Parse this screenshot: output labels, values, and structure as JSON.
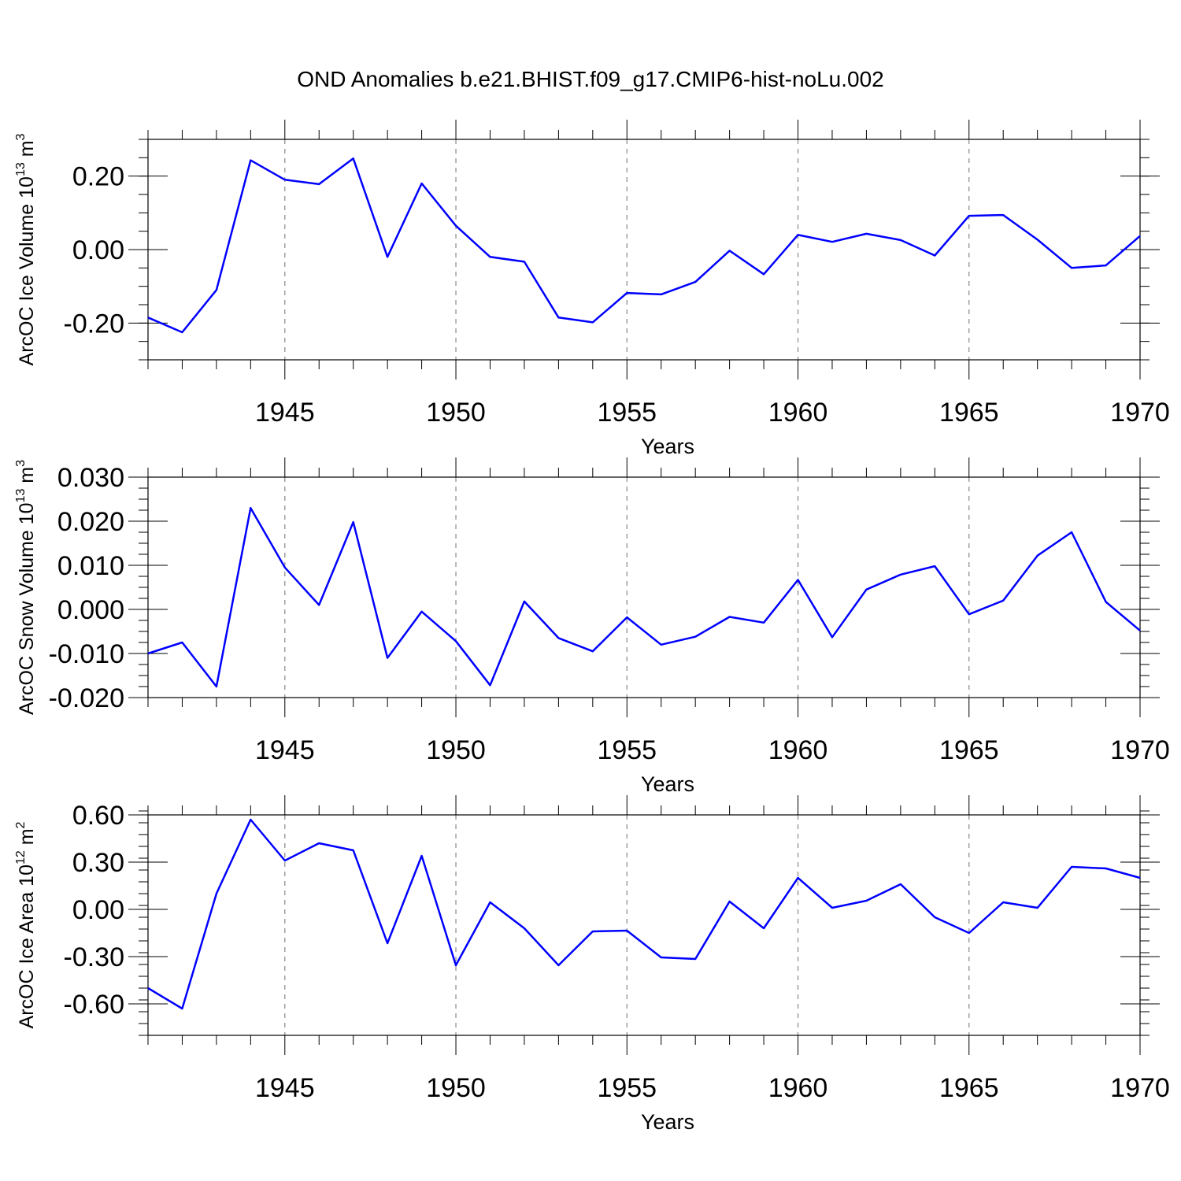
{
  "title": "OND Anomalies b.e21.BHIST.f09_g17.CMIP6-hist-noLu.002",
  "colors": {
    "line": "#0000ff",
    "axis": "#000000",
    "grid": "#888888"
  },
  "chart_data": [
    {
      "type": "line",
      "ylabel": {
        "text": "ArcOC Ice Volume 10",
        "exponent": "13",
        "unit": " m",
        "unit_exponent": "3"
      },
      "xlabel": "Years",
      "xlim": [
        1941,
        1970
      ],
      "ylim": [
        -0.3,
        0.3
      ],
      "xticks": [
        1945,
        1950,
        1955,
        1960,
        1965,
        1970
      ],
      "yticks": [
        -0.2,
        0.0,
        0.2
      ],
      "ytick_labels": [
        "-0.20",
        "0.00",
        "0.20"
      ],
      "grid": "dashed vertical at 5-year marks",
      "x": [
        1941,
        1942,
        1943,
        1944,
        1945,
        1946,
        1947,
        1948,
        1949,
        1950,
        1951,
        1952,
        1953,
        1954,
        1955,
        1956,
        1957,
        1958,
        1959,
        1960,
        1961,
        1962,
        1963,
        1964,
        1965,
        1966,
        1967,
        1968,
        1969,
        1970
      ],
      "values": [
        -0.185,
        -0.225,
        -0.11,
        0.243,
        0.19,
        0.178,
        0.248,
        -0.02,
        0.18,
        0.065,
        -0.02,
        -0.033,
        -0.185,
        -0.198,
        -0.118,
        -0.122,
        -0.088,
        -0.003,
        -0.067,
        0.04,
        0.021,
        0.043,
        0.026,
        -0.016,
        0.092,
        0.094,
        0.027,
        -0.05,
        -0.043,
        0.037
      ]
    },
    {
      "type": "line",
      "ylabel": {
        "text": "ArcOC Snow Volume 10",
        "exponent": "13",
        "unit": " m",
        "unit_exponent": "3"
      },
      "xlabel": "Years",
      "xlim": [
        1941,
        1970
      ],
      "ylim": [
        -0.02,
        0.03
      ],
      "xticks": [
        1945,
        1950,
        1955,
        1960,
        1965,
        1970
      ],
      "yticks": [
        -0.02,
        -0.01,
        0.0,
        0.01,
        0.02,
        0.03
      ],
      "ytick_labels": [
        "-0.020",
        "-0.010",
        "0.000",
        "0.010",
        "0.020",
        "0.030"
      ],
      "grid": "dashed vertical at 5-year marks",
      "x": [
        1941,
        1942,
        1943,
        1944,
        1945,
        1946,
        1947,
        1948,
        1949,
        1950,
        1951,
        1952,
        1953,
        1954,
        1955,
        1956,
        1957,
        1958,
        1959,
        1960,
        1961,
        1962,
        1963,
        1964,
        1965,
        1966,
        1967,
        1968,
        1969,
        1970
      ],
      "values": [
        -0.01,
        -0.0075,
        -0.0175,
        0.023,
        0.0095,
        0.001,
        0.0198,
        -0.011,
        -0.0005,
        -0.0072,
        -0.0172,
        0.0018,
        -0.0065,
        -0.0095,
        -0.0018,
        -0.008,
        -0.0062,
        -0.0017,
        -0.003,
        0.0067,
        -0.0063,
        0.0045,
        0.0079,
        0.0098,
        -0.0011,
        0.002,
        0.0122,
        0.0175,
        0.0017,
        -0.0048
      ]
    },
    {
      "type": "line",
      "ylabel": {
        "text": "ArcOC Ice Area 10",
        "exponent": "12",
        "unit": " m",
        "unit_exponent": "2"
      },
      "xlabel": "Years",
      "xlim": [
        1941,
        1970
      ],
      "ylim": [
        -0.8,
        0.6
      ],
      "xticks": [
        1945,
        1950,
        1955,
        1960,
        1965,
        1970
      ],
      "yticks": [
        -0.6,
        -0.3,
        0.0,
        0.3,
        0.6
      ],
      "ytick_labels": [
        "-0.60",
        "-0.30",
        "0.00",
        "0.30",
        "0.60"
      ],
      "grid": "dashed vertical at 5-year marks",
      "x": [
        1941,
        1942,
        1943,
        1944,
        1945,
        1946,
        1947,
        1948,
        1949,
        1950,
        1951,
        1952,
        1953,
        1954,
        1955,
        1956,
        1957,
        1958,
        1959,
        1960,
        1961,
        1962,
        1963,
        1964,
        1965,
        1966,
        1967,
        1968,
        1969,
        1970
      ],
      "values": [
        -0.5,
        -0.63,
        0.1,
        0.57,
        0.31,
        0.42,
        0.375,
        -0.215,
        0.34,
        -0.355,
        0.045,
        -0.12,
        -0.355,
        -0.14,
        -0.135,
        -0.305,
        -0.315,
        0.05,
        -0.12,
        0.2,
        0.01,
        0.055,
        0.16,
        -0.05,
        -0.15,
        0.045,
        0.01,
        0.27,
        0.26,
        0.2
      ]
    }
  ]
}
